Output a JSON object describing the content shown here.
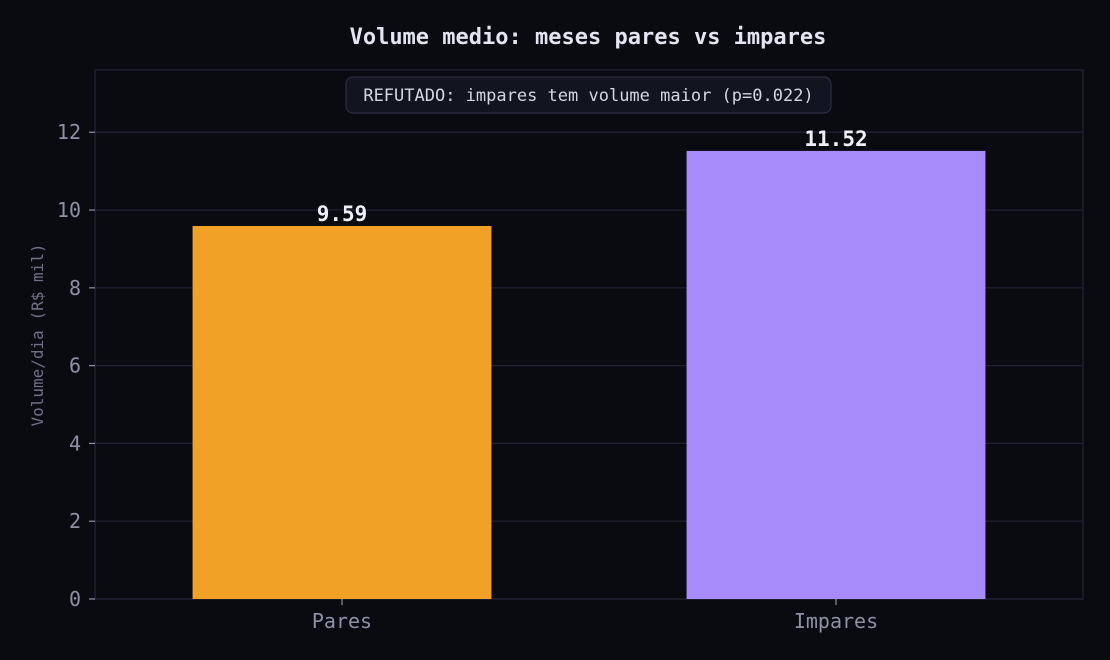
{
  "chart_data": {
    "type": "bar",
    "title": "Volume medio: meses pares vs impares",
    "xlabel": "",
    "ylabel": "Volume/dia (R$ mil)",
    "categories": [
      "Pares",
      "Impares"
    ],
    "values": [
      9.59,
      11.52
    ],
    "value_labels": [
      "9.59",
      "11.52"
    ],
    "colors": [
      "#f0a126",
      "#a78bfa"
    ],
    "ylim": [
      0,
      13.6
    ],
    "yticks": [
      0,
      2,
      4,
      6,
      8,
      10,
      12
    ],
    "grid": true,
    "annotation": "REFUTADO: impares tem volume maior (p=0.022)"
  }
}
